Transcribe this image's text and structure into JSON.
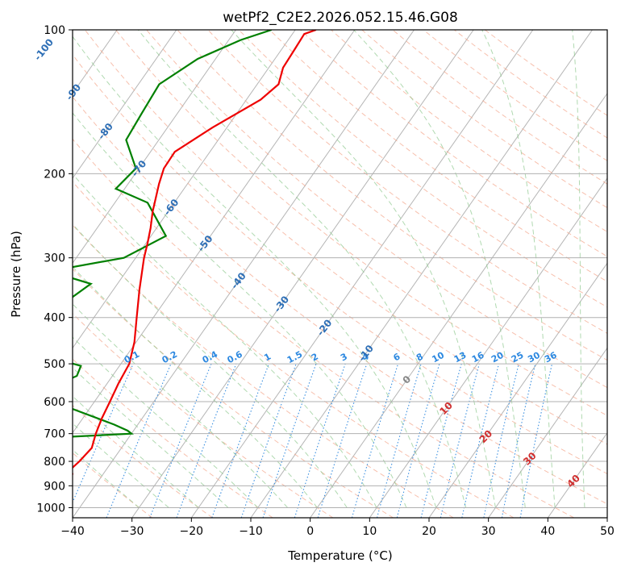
{
  "chart_data": {
    "type": "line",
    "title": "wetPf2_C2E2.2026.052.15.46.G08",
    "xlabel": "Temperature (°C)",
    "ylabel": "Pressure (hPa)",
    "xlim": [
      -40,
      50
    ],
    "ylim": [
      1050,
      100
    ],
    "y_scale": "log",
    "grid": true,
    "x_ticks": [
      -40,
      -30,
      -20,
      -10,
      0,
      10,
      20,
      30,
      40,
      50
    ],
    "y_ticks": [
      100,
      200,
      300,
      400,
      500,
      600,
      700,
      800,
      900,
      1000
    ],
    "dry_adiabat_labels": [
      {
        "text": "-100",
        "t": -100,
        "p": 110
      },
      {
        "text": "-90",
        "t": -90,
        "p": 135
      },
      {
        "text": "-80",
        "t": -80,
        "p": 163
      },
      {
        "text": "-70",
        "t": -70,
        "p": 195
      },
      {
        "text": "-60",
        "t": -60,
        "p": 235
      },
      {
        "text": "-50",
        "t": -50,
        "p": 280
      },
      {
        "text": "-40",
        "t": -40,
        "p": 335
      },
      {
        "text": "-30",
        "t": -30,
        "p": 375
      },
      {
        "text": "-20",
        "t": -20,
        "p": 420
      },
      {
        "text": "-10",
        "t": -10,
        "p": 475
      }
    ],
    "moist_adiabat_labels": [
      {
        "text": "0",
        "t": 0,
        "p": 540
      },
      {
        "text": "10",
        "t": 10,
        "p": 620
      },
      {
        "text": "20",
        "t": 20,
        "p": 710
      },
      {
        "text": "30",
        "t": 30,
        "p": 790
      },
      {
        "text": "40",
        "t": 40,
        "p": 880
      }
    ],
    "mixing_ratio_labels": [
      "0.1",
      "0.2",
      "0.4",
      "0.6",
      "1",
      "1.5",
      "2",
      "3",
      "4",
      "6",
      "8",
      "10",
      "13",
      "16",
      "20",
      "25",
      "30",
      "36"
    ],
    "series": [
      {
        "kind": "temperature",
        "color": "#ee0000",
        "points": [
          [
            -43.8,
            1000
          ],
          [
            -46.2,
            960
          ],
          [
            -47.5,
            920
          ],
          [
            -47.3,
            880
          ],
          [
            -45.2,
            850
          ],
          [
            -46.0,
            830
          ],
          [
            -45.5,
            800
          ],
          [
            -45.0,
            750
          ],
          [
            -46.0,
            700
          ],
          [
            -46.8,
            650
          ],
          [
            -47.4,
            600
          ],
          [
            -48.1,
            550
          ],
          [
            -48.6,
            500
          ],
          [
            -50.3,
            450
          ],
          [
            -52.8,
            400
          ],
          [
            -55.6,
            350
          ],
          [
            -58.6,
            300
          ],
          [
            -59.7,
            280
          ],
          [
            -61.0,
            260
          ],
          [
            -62.6,
            240
          ],
          [
            -64.8,
            210
          ],
          [
            -65.8,
            195
          ],
          [
            -65.9,
            180
          ],
          [
            -62.4,
            160
          ],
          [
            -57.6,
            140
          ],
          [
            -56.4,
            130
          ],
          [
            -57.6,
            120
          ],
          [
            -57.8,
            110
          ],
          [
            -58.0,
            102
          ],
          [
            -56.5,
            100
          ]
        ]
      },
      {
        "kind": "dewpoint",
        "color": "#008000",
        "points": [
          [
            -50.2,
            1000
          ],
          [
            -50.8,
            960
          ],
          [
            -51.7,
            930
          ],
          [
            -60.0,
            900
          ],
          [
            -71.5,
            870
          ],
          [
            -85.0,
            850
          ],
          [
            -120.0,
            840
          ],
          [
            -80.0,
            830
          ],
          [
            -89.0,
            810
          ],
          [
            -72.0,
            800
          ],
          [
            -82.0,
            795
          ],
          [
            -70.0,
            780
          ],
          [
            -75.5,
            760
          ],
          [
            -73.0,
            745
          ],
          [
            -77.2,
            740
          ],
          [
            -40.0,
            700
          ],
          [
            -41.0,
            690
          ],
          [
            -44.0,
            670
          ],
          [
            -55.0,
            610
          ],
          [
            -60.0,
            570
          ],
          [
            -56.0,
            530
          ],
          [
            -56.5,
            505
          ],
          [
            -61.0,
            490
          ],
          [
            -66.5,
            450
          ],
          [
            -65.5,
            430
          ],
          [
            -66.2,
            410
          ],
          [
            -66.5,
            370
          ],
          [
            -64.5,
            340
          ],
          [
            -73.0,
            320
          ],
          [
            -62.0,
            300
          ],
          [
            -57.5,
            270
          ],
          [
            -64.5,
            230
          ],
          [
            -71.5,
            215
          ],
          [
            -70.5,
            195
          ],
          [
            -75.5,
            170
          ],
          [
            -76.0,
            150
          ],
          [
            -76.5,
            130
          ],
          [
            -73.0,
            115
          ],
          [
            -68.0,
            105
          ],
          [
            -64.0,
            100
          ]
        ]
      }
    ]
  }
}
